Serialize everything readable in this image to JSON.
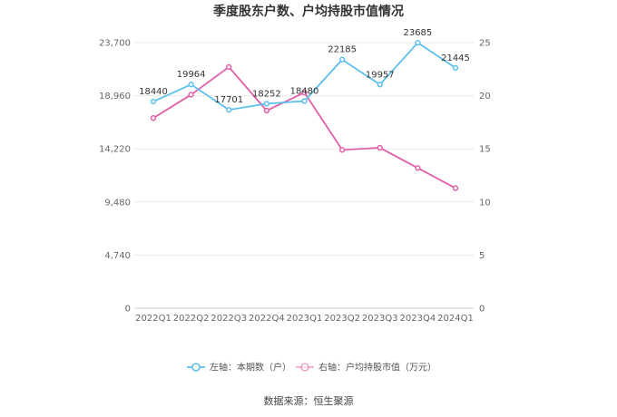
{
  "chart_data": {
    "type": "line",
    "title": "季度股东户数、户均持股市值情况",
    "categories": [
      "2022Q1",
      "2022Q2",
      "2022Q3",
      "2022Q4",
      "2023Q1",
      "2023Q2",
      "2023Q3",
      "2023Q4",
      "2024Q1"
    ],
    "left_axis": {
      "ticks": [
        "0",
        "4,740",
        "9,480",
        "14,220",
        "18,960",
        "23,700"
      ],
      "ylim": [
        0,
        23700
      ]
    },
    "right_axis": {
      "ticks": [
        "0",
        "5",
        "10",
        "15",
        "20",
        "25"
      ],
      "ylim": [
        0,
        25
      ]
    },
    "series": [
      {
        "name": "左轴：本期数（户）",
        "axis": "left",
        "color": "#5bc0eb",
        "values": [
          18440,
          19964,
          17701,
          18252,
          18480,
          22185,
          19957,
          23685,
          21445
        ],
        "labels": [
          "18440",
          "19964",
          "17701",
          "18252",
          "18480",
          "22185",
          "19957",
          "23685",
          "21445"
        ]
      },
      {
        "name": "右轴：户均持股市值（万元）",
        "axis": "right",
        "color": "#e05fa8",
        "values": [
          17.9,
          20.1,
          22.7,
          18.6,
          20.3,
          14.9,
          15.1,
          13.2,
          11.3
        ]
      }
    ],
    "grid": true,
    "legend": "bottom-center"
  },
  "source_text": "数据来源：恒生聚源"
}
